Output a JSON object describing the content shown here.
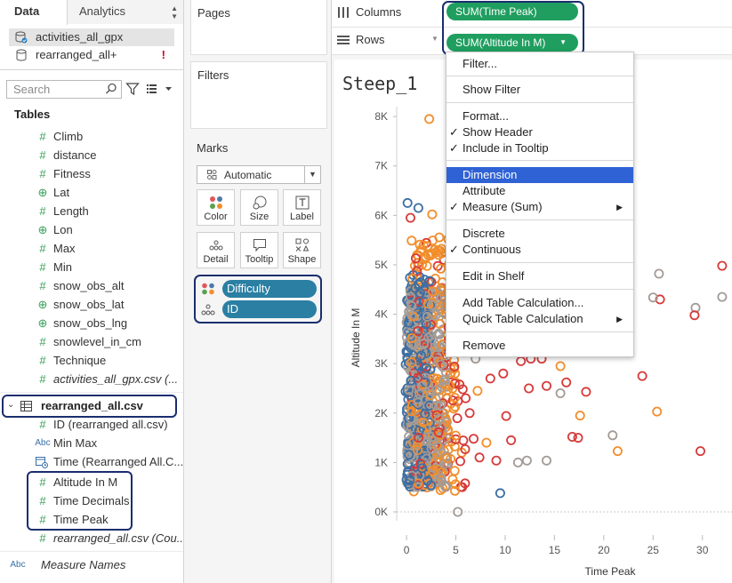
{
  "data_pane": {
    "tabs": {
      "data": "Data",
      "analytics": "Analytics"
    },
    "data_sources": [
      {
        "name": "activities_all_gpx",
        "selected": true
      },
      {
        "name": "rearranged_all+",
        "warning": "!"
      }
    ],
    "search_placeholder": "Search",
    "tables_label": "Tables",
    "fields_activities": [
      {
        "icon": "#",
        "name": "Climb"
      },
      {
        "icon": "#",
        "name": "distance"
      },
      {
        "icon": "#",
        "name": "Fitness"
      },
      {
        "icon": "globe",
        "name": "Lat"
      },
      {
        "icon": "#",
        "name": "Length"
      },
      {
        "icon": "globe",
        "name": "Lon"
      },
      {
        "icon": "#",
        "name": "Max"
      },
      {
        "icon": "#",
        "name": "Min"
      },
      {
        "icon": "#",
        "name": "snow_obs_alt"
      },
      {
        "icon": "globe",
        "name": "snow_obs_lat"
      },
      {
        "icon": "globe",
        "name": "snow_obs_lng"
      },
      {
        "icon": "#",
        "name": "snowlevel_in_cm"
      },
      {
        "icon": "#",
        "name": "Technique"
      },
      {
        "icon": "#",
        "name": "activities_all_gpx.csv (..."
      }
    ],
    "rearranged_table": "rearranged_all.csv",
    "fields_rearranged": [
      {
        "icon": "#",
        "name": "ID (rearranged all.csv)"
      },
      {
        "icon": "Abc",
        "name": "Min Max"
      },
      {
        "icon": "date",
        "name": "Time (Rearranged All.C..."
      },
      {
        "icon": "#",
        "name": "Altitude In M"
      },
      {
        "icon": "#",
        "name": "Time Decimals"
      },
      {
        "icon": "#",
        "name": "Time Peak"
      },
      {
        "icon": "#",
        "name": "rearranged_all.csv (Cou..."
      }
    ],
    "measure_names": {
      "icon": "Abc",
      "name": "Measure Names"
    }
  },
  "cards": {
    "pages": "Pages",
    "filters": "Filters",
    "marks": "Marks",
    "mark_type": "Automatic",
    "mark_buttons": {
      "color": "Color",
      "size": "Size",
      "label": "Label",
      "detail": "Detail",
      "tooltip": "Tooltip",
      "shape": "Shape"
    },
    "mark_pills": {
      "difficulty": "Difficulty",
      "id": "ID"
    }
  },
  "shelves": {
    "columns_label": "Columns",
    "rows_label": "Rows",
    "columns_pill": "SUM(Time Peak)",
    "rows_pill": "SUM(Altitude In M)"
  },
  "sheet_title": "Steep_1",
  "chart_data": {
    "type": "scatter",
    "xlabel": "Time Peak",
    "ylabel": "Altitude In M",
    "x_ticks": [
      0,
      5,
      10,
      15,
      20,
      25,
      30
    ],
    "y_ticks": [
      "0K",
      "1K",
      "2K",
      "3K",
      "4K",
      "5K",
      "6K",
      "7K",
      "8K"
    ],
    "xlim": [
      -1,
      33
    ],
    "ylim": [
      0,
      8200
    ],
    "colors": {
      "blue": "#3d6fa3",
      "orange": "#f28e2b",
      "red": "#d63b3b",
      "gray": "#a49b96"
    },
    "points": [
      [
        2.3,
        7950,
        "orange"
      ],
      [
        0.1,
        6250,
        "blue"
      ],
      [
        1.2,
        6150,
        "blue"
      ],
      [
        0.4,
        5950,
        "red"
      ],
      [
        2.6,
        6020,
        "orange"
      ],
      [
        3.8,
        5100,
        "red"
      ],
      [
        6.2,
        4920,
        "red"
      ],
      [
        7.4,
        4720,
        "orange"
      ],
      [
        8.9,
        4600,
        "orange"
      ],
      [
        9.6,
        4550,
        "gray"
      ],
      [
        11.6,
        4500,
        "orange"
      ],
      [
        15.4,
        4700,
        "red"
      ],
      [
        21.4,
        4620,
        "red"
      ],
      [
        25.7,
        4300,
        "red"
      ],
      [
        25.0,
        4340,
        "gray"
      ],
      [
        25.6,
        4820,
        "gray"
      ],
      [
        29.3,
        4130,
        "gray"
      ],
      [
        29.2,
        3980,
        "red"
      ],
      [
        32.0,
        4980,
        "red"
      ],
      [
        32.0,
        4350,
        "gray"
      ],
      [
        6.0,
        3400,
        "red"
      ],
      [
        7.3,
        3550,
        "orange"
      ],
      [
        9.3,
        3300,
        "red"
      ],
      [
        11.6,
        3050,
        "red"
      ],
      [
        12.6,
        3100,
        "red"
      ],
      [
        13.7,
        3100,
        "red"
      ],
      [
        15.6,
        2950,
        "orange"
      ],
      [
        15.0,
        3250,
        "red"
      ],
      [
        12.4,
        2500,
        "red"
      ],
      [
        14.2,
        2550,
        "red"
      ],
      [
        16.2,
        2620,
        "red"
      ],
      [
        18.2,
        2430,
        "red"
      ],
      [
        23.9,
        2750,
        "red"
      ],
      [
        15.6,
        2400,
        "gray"
      ],
      [
        17.6,
        1950,
        "orange"
      ],
      [
        25.4,
        2030,
        "orange"
      ],
      [
        10.1,
        1940,
        "red"
      ],
      [
        10.6,
        1450,
        "red"
      ],
      [
        17.4,
        1500,
        "red"
      ],
      [
        16.8,
        1520,
        "red"
      ],
      [
        20.9,
        1550,
        "gray"
      ],
      [
        21.4,
        1230,
        "orange"
      ],
      [
        29.8,
        1230,
        "red"
      ],
      [
        14.2,
        1040,
        "gray"
      ],
      [
        12.2,
        1040,
        "gray"
      ],
      [
        11.3,
        1000,
        "gray"
      ],
      [
        9.5,
        380,
        "blue"
      ],
      [
        5.2,
        0,
        "gray"
      ],
      [
        6.8,
        1480,
        "red"
      ],
      [
        7.4,
        1100,
        "red"
      ],
      [
        8.1,
        1400,
        "orange"
      ],
      [
        9.1,
        1040,
        "red"
      ],
      [
        6.4,
        2000,
        "red"
      ],
      [
        7.2,
        2450,
        "orange"
      ],
      [
        8.5,
        2700,
        "red"
      ],
      [
        9.8,
        2800,
        "red"
      ],
      [
        5.8,
        4200,
        "orange"
      ],
      [
        6.6,
        3900,
        "red"
      ],
      [
        7.9,
        3800,
        "orange"
      ],
      [
        4.9,
        5700,
        "orange"
      ],
      [
        5.4,
        5400,
        "red"
      ],
      [
        6.8,
        5200,
        "orange"
      ],
      [
        8.0,
        4100,
        "red"
      ],
      [
        7.0,
        3100,
        "gray"
      ],
      [
        6.0,
        2300,
        "red"
      ],
      [
        5.6,
        1200,
        "orange"
      ]
    ]
  },
  "context_menu": {
    "items": [
      {
        "label": "Filter...",
        "check": "",
        "submenu": ""
      },
      {
        "label": "Show Filter",
        "check": "",
        "submenu": ""
      },
      {
        "label": "Format...",
        "check": "",
        "submenu": ""
      },
      {
        "label": "Show Header",
        "check": "✓",
        "submenu": ""
      },
      {
        "label": "Include in Tooltip",
        "check": "✓",
        "submenu": ""
      },
      {
        "label": "Dimension",
        "check": "",
        "submenu": ""
      },
      {
        "label": "Attribute",
        "check": "",
        "submenu": ""
      },
      {
        "label": "Measure (Sum)",
        "check": "✓",
        "submenu": "▶"
      },
      {
        "label": "Discrete",
        "check": "",
        "submenu": ""
      },
      {
        "label": "Continuous",
        "check": "✓",
        "submenu": ""
      },
      {
        "label": "Edit in Shelf",
        "check": "",
        "submenu": ""
      },
      {
        "label": "Add Table Calculation...",
        "check": "",
        "submenu": ""
      },
      {
        "label": "Quick Table Calculation",
        "check": "",
        "submenu": "▶"
      },
      {
        "label": "Remove",
        "check": "",
        "submenu": ""
      }
    ]
  }
}
